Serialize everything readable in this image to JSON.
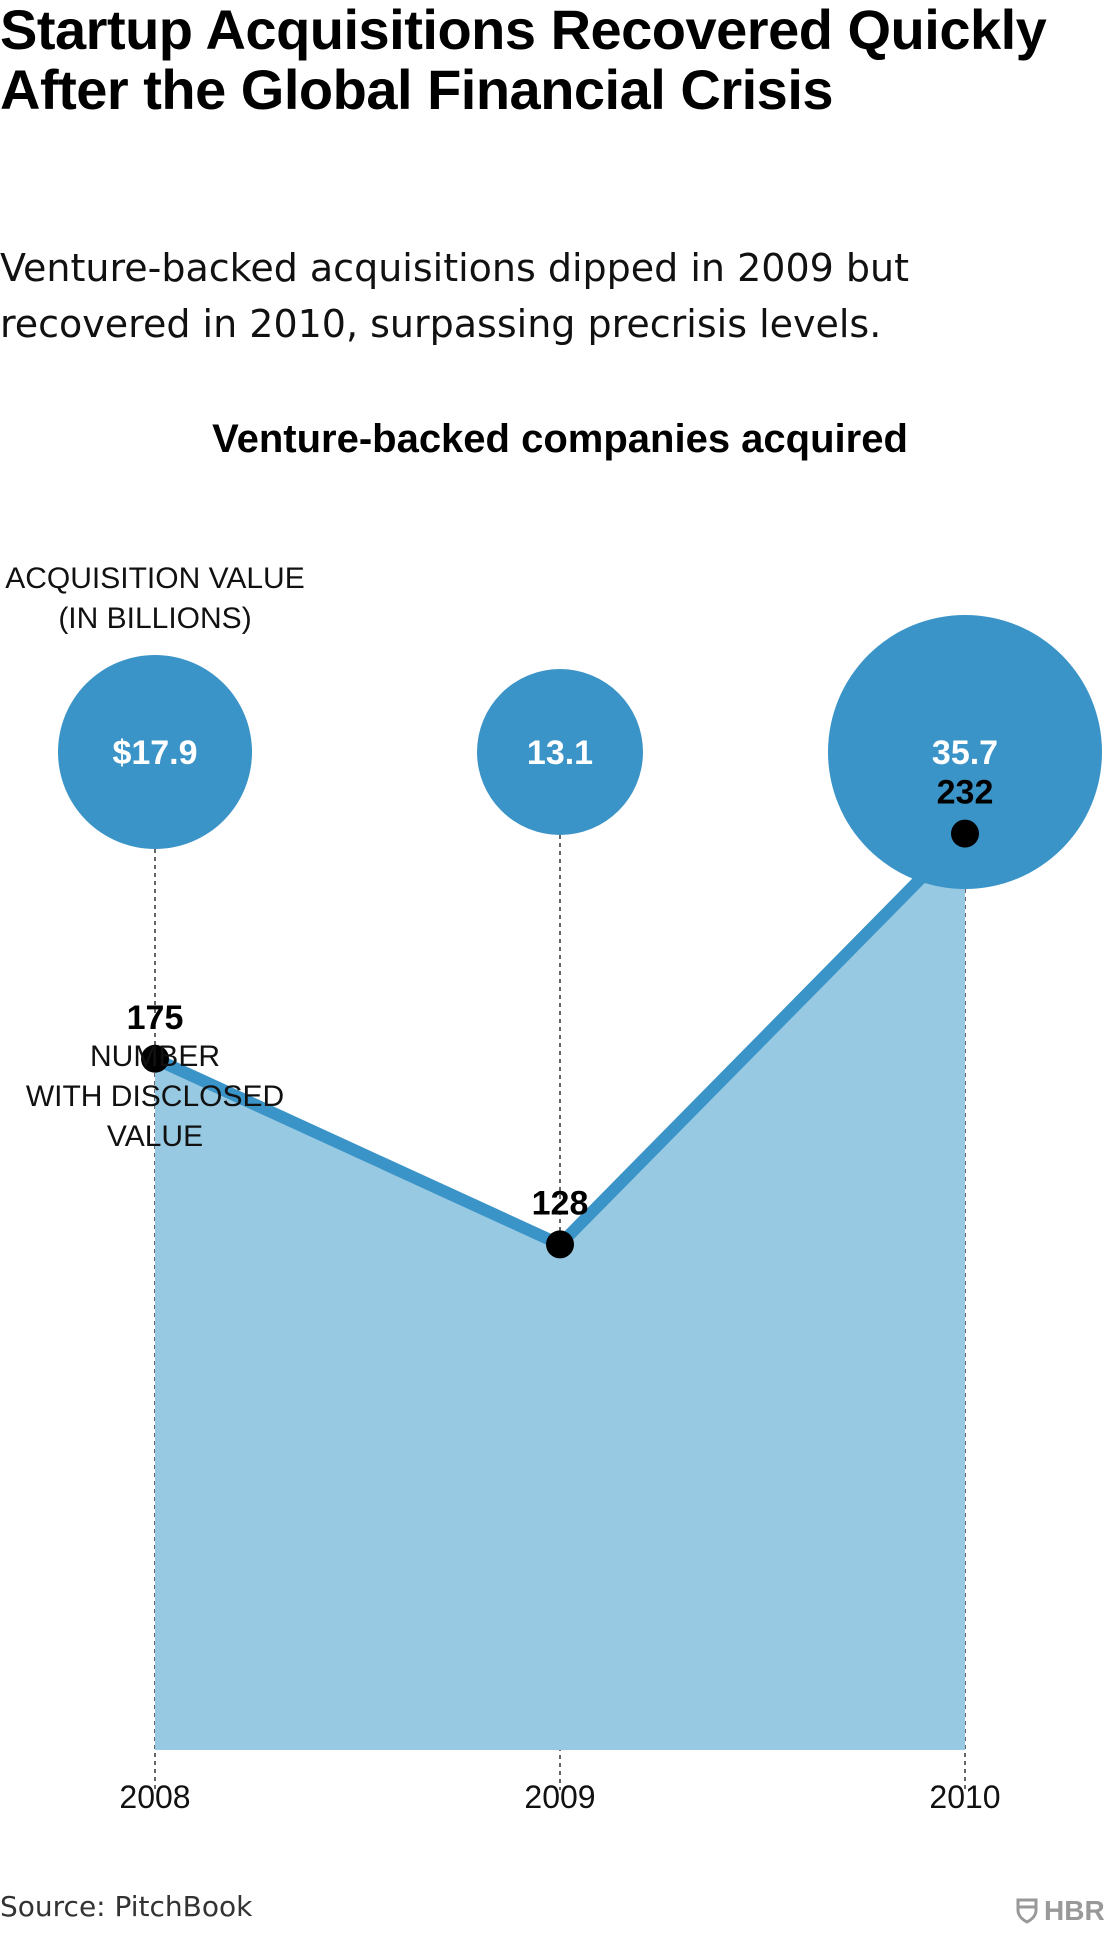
{
  "title": "Startup Acquisitions Recovered Quickly After the Global Financial Crisis",
  "subtitle": "Venture-backed acquisitions dipped in 2009 but recovered in 2010, surpassing precrisis levels.",
  "source": "Source: PitchBook",
  "logo_text": "HBR",
  "colors": {
    "bubble": "#3b94c8",
    "line": "#3b94c8",
    "area": "#97c9e2",
    "point": "#000000"
  },
  "chart_data": {
    "type": "area",
    "title": "Venture-backed companies acquired",
    "categories": [
      "2008",
      "2009",
      "2010"
    ],
    "annotations": {
      "bubbles_line1": "ACQUISITION VALUE",
      "bubbles_line2": "(IN BILLIONS)",
      "count_line1": "NUMBER",
      "count_line2": "WITH DISCLOSED",
      "count_line3": "VALUE"
    },
    "series": [
      {
        "name": "Number with disclosed value",
        "values": [
          175,
          128,
          232
        ],
        "labels": [
          "175",
          "128",
          "232"
        ]
      },
      {
        "name": "Acquisition value (in billions)",
        "values": [
          17.9,
          13.1,
          35.7
        ],
        "labels": [
          "$17.9",
          "13.1",
          "35.7"
        ]
      }
    ]
  }
}
